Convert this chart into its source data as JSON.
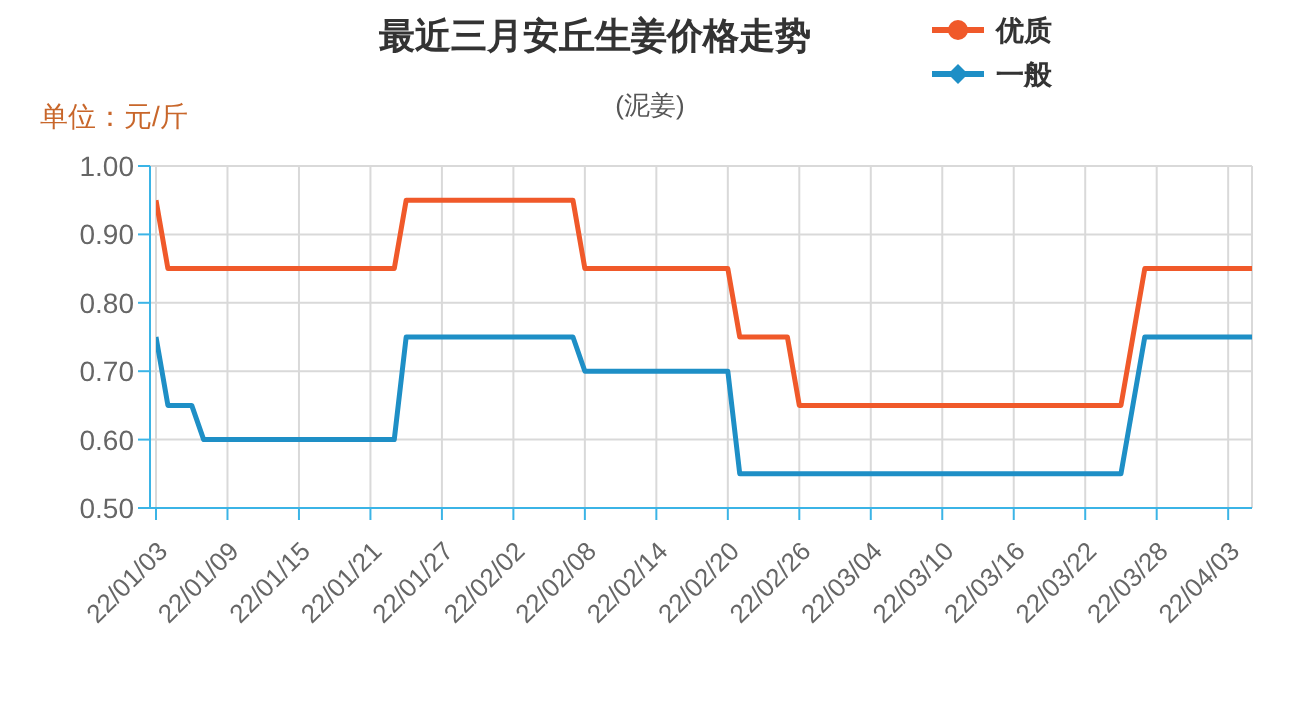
{
  "chart_data": {
    "type": "line",
    "title": "最近三月安丘生姜价格走势",
    "subtitle": "(泥姜)",
    "ylabel": "单位：元/斤",
    "x": [
      "--01-03",
      "--01-04",
      "--01-05",
      "--01-06",
      "--01-07",
      "--01-08",
      "--01-09",
      "--01-10",
      "--01-11",
      "--01-12",
      "--01-13",
      "--01-14",
      "--01-15",
      "--01-16",
      "--01-17",
      "--01-18",
      "--01-19",
      "--01-20",
      "--01-21",
      "--01-22",
      "--01-23",
      "--01-24",
      "--01-25",
      "--01-26",
      "--01-27",
      "--01-28",
      "--01-29",
      "--01-30",
      "--01-31",
      "--02-01",
      "--02-02",
      "--02-03",
      "--02-04",
      "--02-05",
      "--02-06",
      "--02-07",
      "--02-08",
      "--02-09",
      "--02-10",
      "--02-11",
      "--02-12",
      "--02-13",
      "--02-14",
      "--02-15",
      "--02-16",
      "--02-17",
      "--02-18",
      "--02-19",
      "--02-20",
      "--02-21",
      "--02-22",
      "--02-23",
      "--02-24",
      "--02-25",
      "--02-26",
      "--02-27",
      "--02-28",
      "--03-01",
      "--03-02",
      "--03-03",
      "--03-04",
      "--03-05",
      "--03-06",
      "--03-07",
      "--03-08",
      "--03-09",
      "--03-10",
      "--03-11",
      "--03-12",
      "--03-13",
      "--03-14",
      "--03-15",
      "--03-16",
      "--03-17",
      "--03-18",
      "--03-19",
      "--03-20",
      "--03-21",
      "--03-22",
      "--03-23",
      "--03-24",
      "--03-25",
      "--03-26",
      "--03-27",
      "--03-28",
      "--03-29",
      "--03-30",
      "--03-31",
      "--04-01",
      "--04-02",
      "--04-03",
      "--04-04",
      "--04-05"
    ],
    "xlim": [
      "--01-03",
      "--04-05"
    ],
    "xticks": [
      {
        "value": "--01-03",
        "label": "22/01/03"
      },
      {
        "value": "--01-09",
        "label": "22/01/09"
      },
      {
        "value": "--01-15",
        "label": "22/01/15"
      },
      {
        "value": "--01-21",
        "label": "22/01/21"
      },
      {
        "value": "--01-27",
        "label": "22/01/27"
      },
      {
        "value": "--02-02",
        "label": "22/02/02"
      },
      {
        "value": "--02-08",
        "label": "22/02/08"
      },
      {
        "value": "--02-14",
        "label": "22/02/14"
      },
      {
        "value": "--02-20",
        "label": "22/02/20"
      },
      {
        "value": "--02-26",
        "label": "22/02/26"
      },
      {
        "value": "--03-04",
        "label": "22/03/04"
      },
      {
        "value": "--03-10",
        "label": "22/03/10"
      },
      {
        "value": "--03-16",
        "label": "22/03/16"
      },
      {
        "value": "--03-22",
        "label": "22/03/22"
      },
      {
        "value": "--03-28",
        "label": "22/03/28"
      },
      {
        "value": "--04-03",
        "label": "22/04/03"
      }
    ],
    "series": [
      {
        "name": "优质",
        "color": "#f0592a",
        "values": [
          0.95,
          0.85,
          0.85,
          0.85,
          0.85,
          0.85,
          0.85,
          0.85,
          0.85,
          0.85,
          0.85,
          0.85,
          0.85,
          0.85,
          0.85,
          0.85,
          0.85,
          0.85,
          0.85,
          0.85,
          0.85,
          0.95,
          0.95,
          0.95,
          0.95,
          0.95,
          0.95,
          0.95,
          0.95,
          0.95,
          0.95,
          0.95,
          0.95,
          0.95,
          0.95,
          0.95,
          0.85,
          0.85,
          0.85,
          0.85,
          0.85,
          0.85,
          0.85,
          0.85,
          0.85,
          0.85,
          0.85,
          0.85,
          0.85,
          0.75,
          0.75,
          0.75,
          0.75,
          0.75,
          0.65,
          0.65,
          0.65,
          0.65,
          0.65,
          0.65,
          0.65,
          0.65,
          0.65,
          0.65,
          0.65,
          0.65,
          0.65,
          0.65,
          0.65,
          0.65,
          0.65,
          0.65,
          0.65,
          0.65,
          0.65,
          0.65,
          0.65,
          0.65,
          0.65,
          0.65,
          0.65,
          0.65,
          0.75,
          0.85,
          0.85,
          0.85,
          0.85,
          0.85,
          0.85,
          0.85,
          0.85,
          0.85,
          0.85
        ]
      },
      {
        "name": "一般",
        "color": "#1e8fc6",
        "values": [
          0.75,
          0.65,
          0.65,
          0.65,
          0.6,
          0.6,
          0.6,
          0.6,
          0.6,
          0.6,
          0.6,
          0.6,
          0.6,
          0.6,
          0.6,
          0.6,
          0.6,
          0.6,
          0.6,
          0.6,
          0.6,
          0.75,
          0.75,
          0.75,
          0.75,
          0.75,
          0.75,
          0.75,
          0.75,
          0.75,
          0.75,
          0.75,
          0.75,
          0.75,
          0.75,
          0.75,
          0.7,
          0.7,
          0.7,
          0.7,
          0.7,
          0.7,
          0.7,
          0.7,
          0.7,
          0.7,
          0.7,
          0.7,
          0.7,
          0.55,
          0.55,
          0.55,
          0.55,
          0.55,
          0.55,
          0.55,
          0.55,
          0.55,
          0.55,
          0.55,
          0.55,
          0.55,
          0.55,
          0.55,
          0.55,
          0.55,
          0.55,
          0.55,
          0.55,
          0.55,
          0.55,
          0.55,
          0.55,
          0.55,
          0.55,
          0.55,
          0.55,
          0.55,
          0.55,
          0.55,
          0.55,
          0.55,
          0.65,
          0.75,
          0.75,
          0.75,
          0.75,
          0.75,
          0.75,
          0.75,
          0.75,
          0.75,
          0.75
        ]
      }
    ],
    "ylim": [
      0.5,
      1.0
    ],
    "yticks": [
      {
        "value": 0.5,
        "label": "0.50"
      },
      {
        "value": 0.6,
        "label": "0.60"
      },
      {
        "value": 0.7,
        "label": "0.70"
      },
      {
        "value": 0.8,
        "label": "0.80"
      },
      {
        "value": 0.9,
        "label": "0.90"
      },
      {
        "value": 1.0,
        "label": "1.00"
      }
    ],
    "grid": true,
    "legend": "top right",
    "marker": "none",
    "line_style": "solid"
  }
}
